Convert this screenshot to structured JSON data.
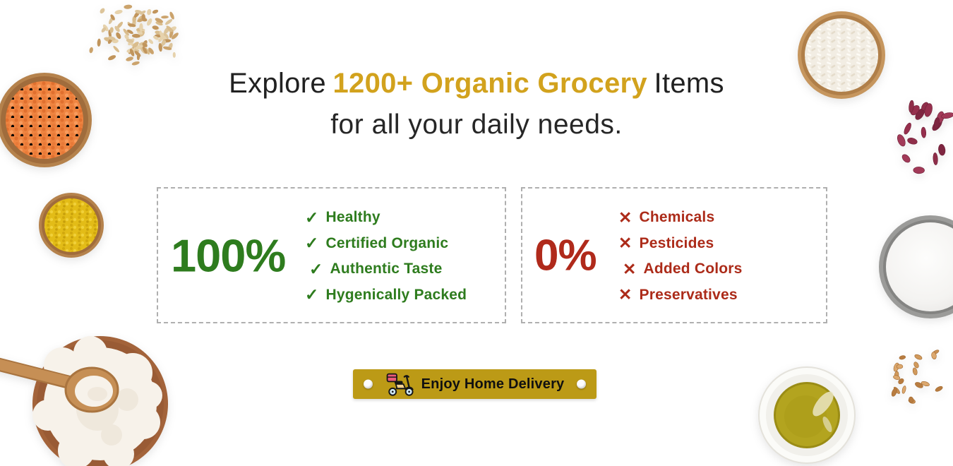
{
  "headline": {
    "line1_prefix": "Explore",
    "line1_highlight": "1200+ Organic Grocery",
    "line1_suffix": "Items",
    "line2": "for all your daily needs."
  },
  "pros_box": {
    "percent": "100%",
    "check_icon": "✓",
    "items": [
      "Healthy",
      "Certified Organic",
      "Authentic Taste",
      "Hygenically Packed"
    ]
  },
  "cons_box": {
    "percent": "0%",
    "cross_icon": "✕",
    "items": [
      "Chemicals",
      "Pesticides",
      "Added Colors",
      "Preservatives"
    ]
  },
  "delivery_button": {
    "label": "Enjoy Home Delivery"
  },
  "colors": {
    "highlight_gold": "#D2A21D",
    "green": "#2E7C1E",
    "red": "#AC2B19",
    "button_gold": "#BC9A16",
    "text_dark": "#212121"
  },
  "decorations": [
    "wheat-grains-top-left",
    "red-lentils-bowl",
    "yellow-moong-dal-bowl",
    "flour-bowl-with-spoon",
    "rice-bowl",
    "kidney-beans-scatter",
    "sugar-bowl",
    "oil-bowl",
    "wheat-grains-bottom-right"
  ]
}
